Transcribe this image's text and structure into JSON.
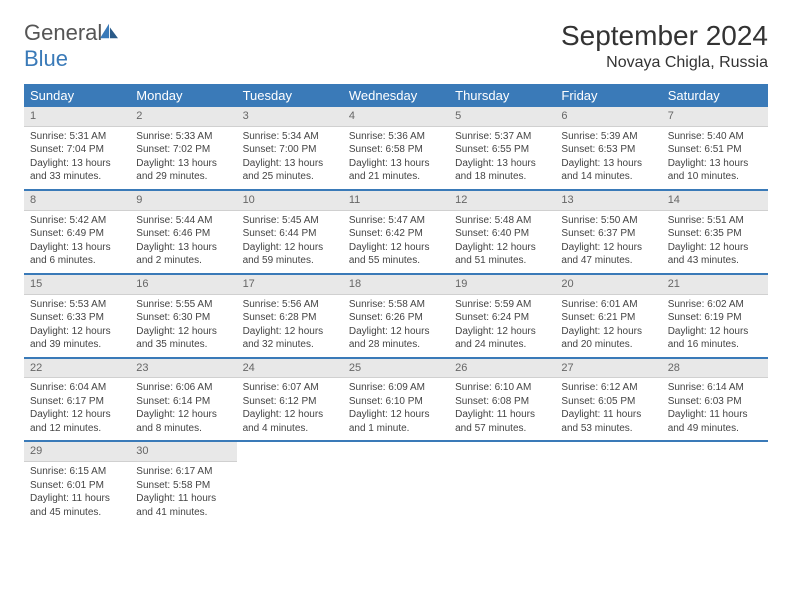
{
  "logo": {
    "text1": "General",
    "text2": "Blue"
  },
  "title": "September 2024",
  "location": "Novaya Chigla, Russia",
  "colors": {
    "header_bg": "#3a7ab8",
    "header_text": "#ffffff",
    "daynum_bg": "#e8e8e8",
    "border": "#3a7ab8",
    "text": "#444444"
  },
  "day_names": [
    "Sunday",
    "Monday",
    "Tuesday",
    "Wednesday",
    "Thursday",
    "Friday",
    "Saturday"
  ],
  "days": [
    {
      "n": "1",
      "sr": "5:31 AM",
      "ss": "7:04 PM",
      "dl": "13 hours and 33 minutes."
    },
    {
      "n": "2",
      "sr": "5:33 AM",
      "ss": "7:02 PM",
      "dl": "13 hours and 29 minutes."
    },
    {
      "n": "3",
      "sr": "5:34 AM",
      "ss": "7:00 PM",
      "dl": "13 hours and 25 minutes."
    },
    {
      "n": "4",
      "sr": "5:36 AM",
      "ss": "6:58 PM",
      "dl": "13 hours and 21 minutes."
    },
    {
      "n": "5",
      "sr": "5:37 AM",
      "ss": "6:55 PM",
      "dl": "13 hours and 18 minutes."
    },
    {
      "n": "6",
      "sr": "5:39 AM",
      "ss": "6:53 PM",
      "dl": "13 hours and 14 minutes."
    },
    {
      "n": "7",
      "sr": "5:40 AM",
      "ss": "6:51 PM",
      "dl": "13 hours and 10 minutes."
    },
    {
      "n": "8",
      "sr": "5:42 AM",
      "ss": "6:49 PM",
      "dl": "13 hours and 6 minutes."
    },
    {
      "n": "9",
      "sr": "5:44 AM",
      "ss": "6:46 PM",
      "dl": "13 hours and 2 minutes."
    },
    {
      "n": "10",
      "sr": "5:45 AM",
      "ss": "6:44 PM",
      "dl": "12 hours and 59 minutes."
    },
    {
      "n": "11",
      "sr": "5:47 AM",
      "ss": "6:42 PM",
      "dl": "12 hours and 55 minutes."
    },
    {
      "n": "12",
      "sr": "5:48 AM",
      "ss": "6:40 PM",
      "dl": "12 hours and 51 minutes."
    },
    {
      "n": "13",
      "sr": "5:50 AM",
      "ss": "6:37 PM",
      "dl": "12 hours and 47 minutes."
    },
    {
      "n": "14",
      "sr": "5:51 AM",
      "ss": "6:35 PM",
      "dl": "12 hours and 43 minutes."
    },
    {
      "n": "15",
      "sr": "5:53 AM",
      "ss": "6:33 PM",
      "dl": "12 hours and 39 minutes."
    },
    {
      "n": "16",
      "sr": "5:55 AM",
      "ss": "6:30 PM",
      "dl": "12 hours and 35 minutes."
    },
    {
      "n": "17",
      "sr": "5:56 AM",
      "ss": "6:28 PM",
      "dl": "12 hours and 32 minutes."
    },
    {
      "n": "18",
      "sr": "5:58 AM",
      "ss": "6:26 PM",
      "dl": "12 hours and 28 minutes."
    },
    {
      "n": "19",
      "sr": "5:59 AM",
      "ss": "6:24 PM",
      "dl": "12 hours and 24 minutes."
    },
    {
      "n": "20",
      "sr": "6:01 AM",
      "ss": "6:21 PM",
      "dl": "12 hours and 20 minutes."
    },
    {
      "n": "21",
      "sr": "6:02 AM",
      "ss": "6:19 PM",
      "dl": "12 hours and 16 minutes."
    },
    {
      "n": "22",
      "sr": "6:04 AM",
      "ss": "6:17 PM",
      "dl": "12 hours and 12 minutes."
    },
    {
      "n": "23",
      "sr": "6:06 AM",
      "ss": "6:14 PM",
      "dl": "12 hours and 8 minutes."
    },
    {
      "n": "24",
      "sr": "6:07 AM",
      "ss": "6:12 PM",
      "dl": "12 hours and 4 minutes."
    },
    {
      "n": "25",
      "sr": "6:09 AM",
      "ss": "6:10 PM",
      "dl": "12 hours and 1 minute."
    },
    {
      "n": "26",
      "sr": "6:10 AM",
      "ss": "6:08 PM",
      "dl": "11 hours and 57 minutes."
    },
    {
      "n": "27",
      "sr": "6:12 AM",
      "ss": "6:05 PM",
      "dl": "11 hours and 53 minutes."
    },
    {
      "n": "28",
      "sr": "6:14 AM",
      "ss": "6:03 PM",
      "dl": "11 hours and 49 minutes."
    },
    {
      "n": "29",
      "sr": "6:15 AM",
      "ss": "6:01 PM",
      "dl": "11 hours and 45 minutes."
    },
    {
      "n": "30",
      "sr": "6:17 AM",
      "ss": "5:58 PM",
      "dl": "11 hours and 41 minutes."
    }
  ],
  "labels": {
    "sunrise": "Sunrise:",
    "sunset": "Sunset:",
    "daylight": "Daylight:"
  }
}
